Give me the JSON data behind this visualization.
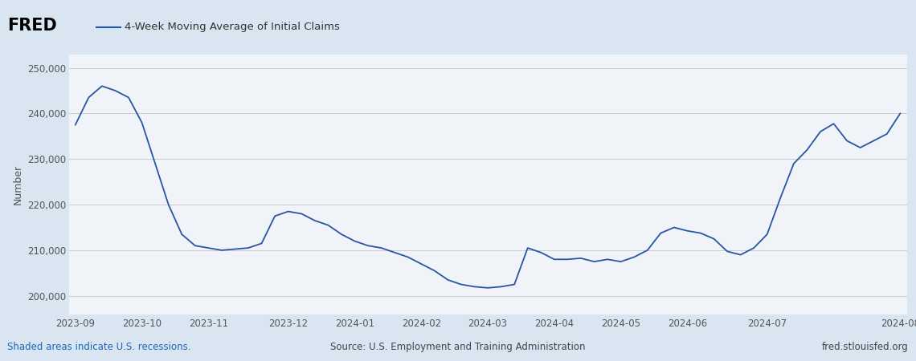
{
  "title": "4-Week Moving Average of Initial Claims",
  "ylabel": "Number",
  "line_color": "#2955a3",
  "outer_bg_color": "#d9e5f0",
  "plot_bg_color": "#f0f4f9",
  "footer_left": "Shaded areas indicate U.S. recessions.",
  "footer_center": "Source: U.S. Employment and Training Administration",
  "footer_right": "fred.stlouisfed.org",
  "footer_left_color": "#1f65b7",
  "footer_text_color": "#444444",
  "ylim": [
    196000,
    253000
  ],
  "yticks": [
    200000,
    210000,
    220000,
    230000,
    240000,
    250000
  ],
  "xtick_labels": [
    "2023-09",
    "2023-10",
    "2023-11",
    "2023-12",
    "2024-01",
    "2024-02",
    "2024-03",
    "2024-04",
    "2024-05",
    "2024-06",
    "2024-07",
    "2024-08"
  ],
  "values": [
    237500,
    243500,
    246000,
    245000,
    243500,
    238000,
    229000,
    220000,
    213500,
    211000,
    210500,
    210000,
    210250,
    210500,
    211500,
    217500,
    218500,
    218000,
    216500,
    215500,
    213500,
    212000,
    211000,
    210500,
    209500,
    208500,
    207000,
    205500,
    203500,
    202500,
    202000,
    201750,
    202000,
    202500,
    210500,
    209500,
    208000,
    208000,
    208250,
    207500,
    208000,
    207500,
    208500,
    210000,
    213750,
    215000,
    214250,
    213750,
    212500,
    209750,
    209000,
    210500,
    213500,
    221500,
    229000,
    232000,
    236000,
    237750,
    234000,
    232500,
    234000,
    235500,
    240000
  ],
  "n_points": 63,
  "xtick_positions_normalized": [
    0.0,
    0.0833,
    0.1667,
    0.25,
    0.333,
    0.4167,
    0.5,
    0.5833,
    0.6667,
    0.75,
    0.8333,
    1.0
  ]
}
